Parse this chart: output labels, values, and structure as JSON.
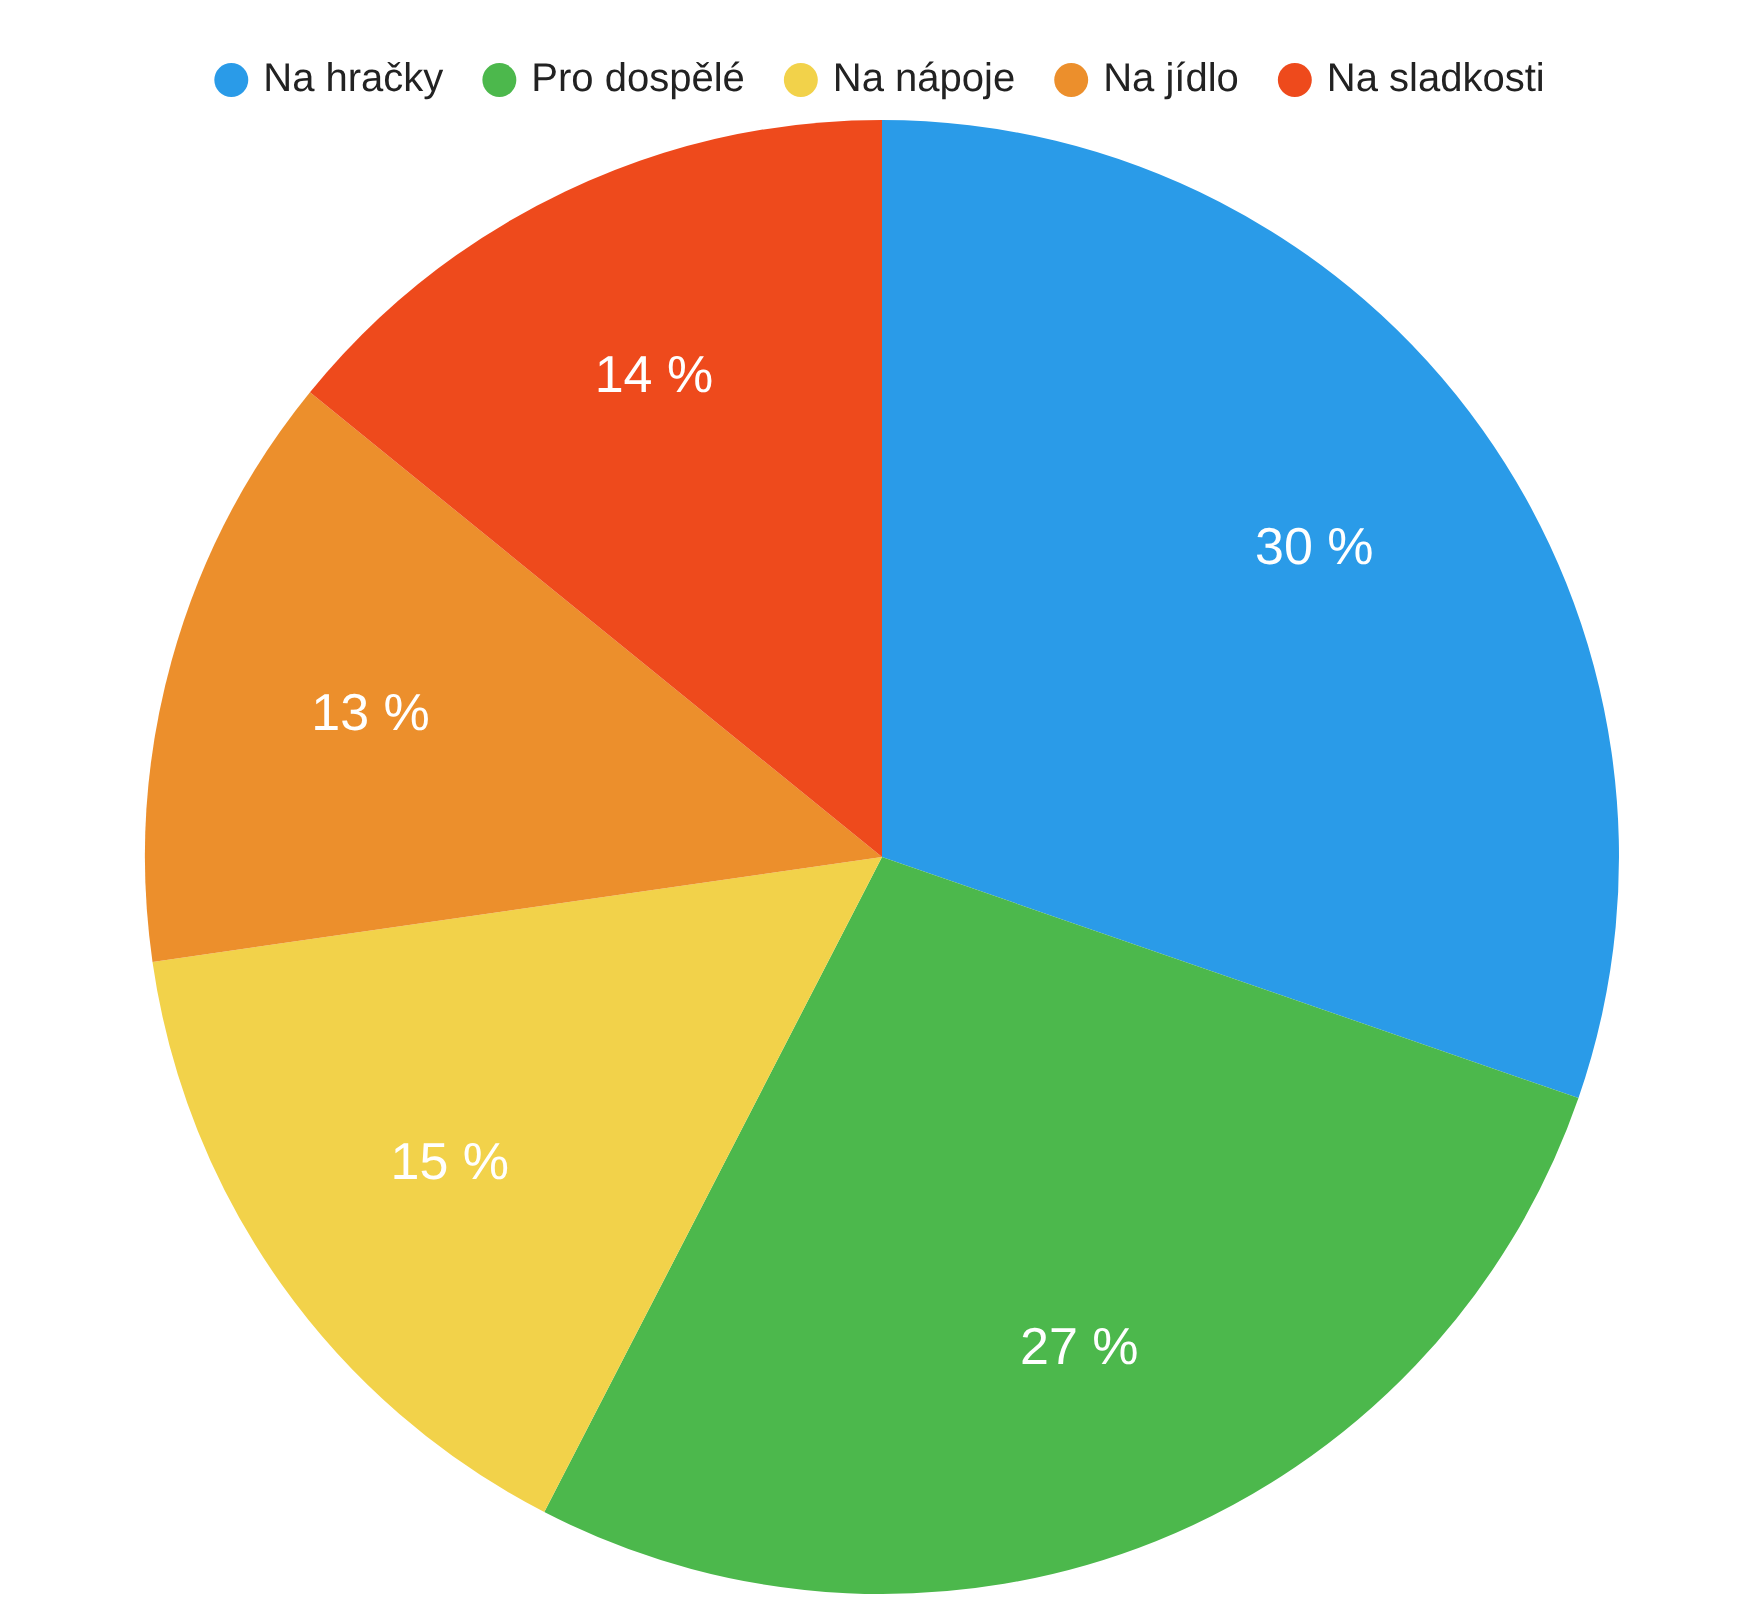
{
  "chart_data": {
    "type": "pie",
    "categories": [
      "Na hračky",
      "Pro dospělé",
      "Na nápoje",
      "Na jídlo",
      "Na sladkosti"
    ],
    "values": [
      30,
      27,
      15,
      13,
      14
    ],
    "value_labels": [
      "30 %",
      "27 %",
      "15 %",
      "13 %",
      "14 %"
    ],
    "colors": [
      "#2a9be8",
      "#4cb84c",
      "#f2d24a",
      "#ec8f2c",
      "#ee4a1c"
    ],
    "legend": "top"
  }
}
